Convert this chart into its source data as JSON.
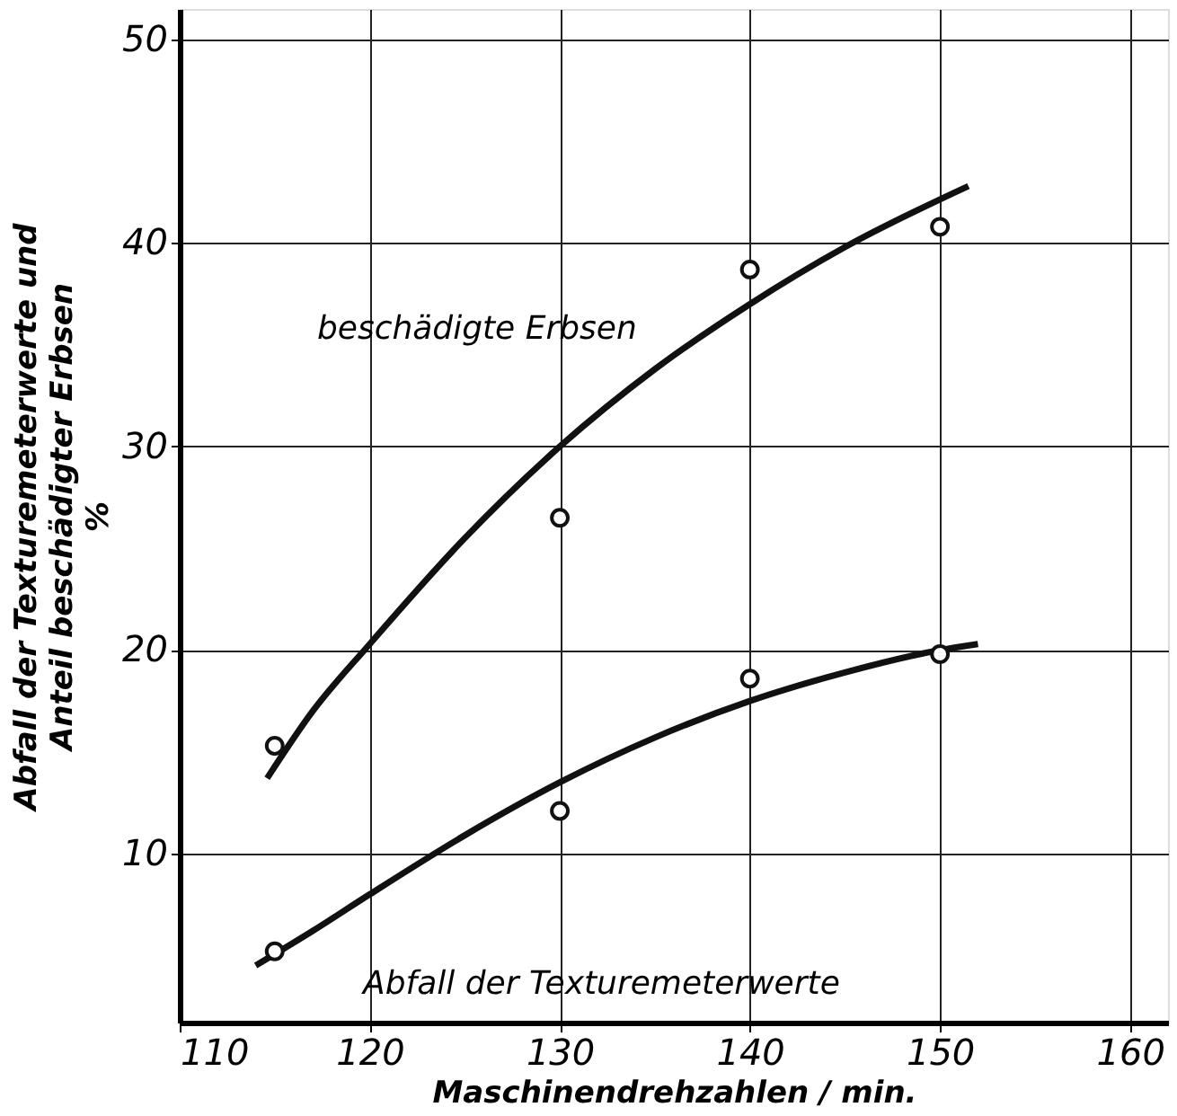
{
  "chart_data": {
    "type": "line",
    "xlabel": "Maschinendrehzahlen / min.",
    "ylabel": "Abfall der Texturemeterwerte und\nAnteil beschädigter Erbsen\n%",
    "xlim": [
      110,
      162
    ],
    "xticks": [
      110,
      120,
      130,
      140,
      150,
      160
    ],
    "ylim": [
      1.7,
      51.5
    ],
    "yticks": [
      10,
      20,
      30,
      40,
      50
    ],
    "grid": true,
    "series": [
      {
        "type": "scatter",
        "marker": "circle",
        "color": "#111111",
        "x": [
          115,
          130,
          140,
          150
        ],
        "values": [
          15.3,
          26.5,
          38.7,
          40.8
        ]
      },
      {
        "type": "scatter",
        "marker": "circle",
        "color": "#111111",
        "x": [
          115,
          130,
          140,
          150
        ],
        "values": [
          5.2,
          12.1,
          18.6,
          19.8
        ]
      },
      {
        "marker": "none",
        "line_style": "solid",
        "color": "#111111",
        "x": [
          114.6,
          117,
          120,
          125,
          130,
          135,
          140,
          145,
          151.5
        ],
        "values": [
          13.7,
          17,
          20.3,
          25.5,
          30,
          33.8,
          37,
          39.8,
          42.8
        ]
      },
      {
        "marker": "none",
        "line_style": "solid",
        "color": "#111111",
        "x": [
          114,
          117,
          120,
          125,
          130,
          135,
          140,
          145,
          150,
          152
        ],
        "values": [
          4.5,
          6.2,
          8,
          10.9,
          13.5,
          15.7,
          17.5,
          18.9,
          20,
          20.3
        ]
      }
    ],
    "annotations": [
      {
        "text": "beschädigte Erbsen",
        "x": 135,
        "y": 33.8
      },
      {
        "text": "Abfall der Texturemeterwerte",
        "x": 117,
        "y": 6.2
      }
    ]
  }
}
